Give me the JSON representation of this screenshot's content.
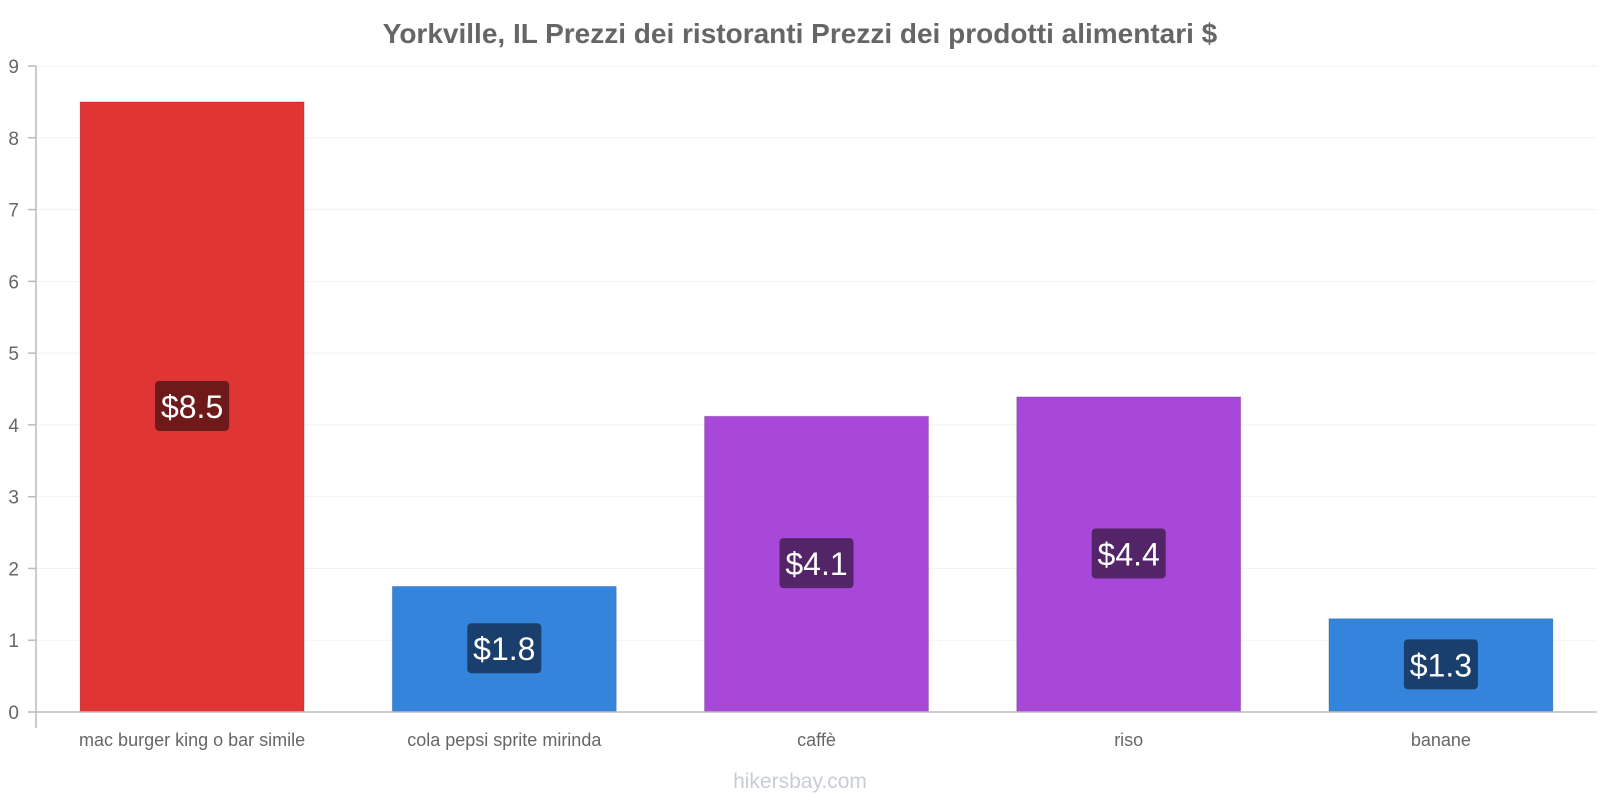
{
  "chart_data": {
    "type": "bar",
    "title": "Yorkville, IL Prezzi dei ristoranti Prezzi dei prodotti alimentari $",
    "categories": [
      "mac burger king o bar simile",
      "cola pepsi sprite mirinda",
      "caffè",
      "riso",
      "banane"
    ],
    "values": [
      8.5,
      1.75,
      4.12,
      4.39,
      1.3
    ],
    "data_labels": [
      "$8.5",
      "$1.8",
      "$4.1",
      "$4.4",
      "$1.3"
    ],
    "bar_colors": [
      "#e03535",
      "#3584dc",
      "#a748d9",
      "#a748d9",
      "#3584dc"
    ],
    "label_colors": [
      "#6e1a1a",
      "#1a3f6c",
      "#532468",
      "#532468",
      "#1a3f6c"
    ],
    "ylim": [
      0,
      9
    ],
    "yticks": [
      "0",
      "1",
      "2",
      "3",
      "4",
      "5",
      "6",
      "7",
      "8",
      "9"
    ],
    "xlabel": "",
    "ylabel": "",
    "grid": true,
    "watermark": "hikersbay.com"
  }
}
